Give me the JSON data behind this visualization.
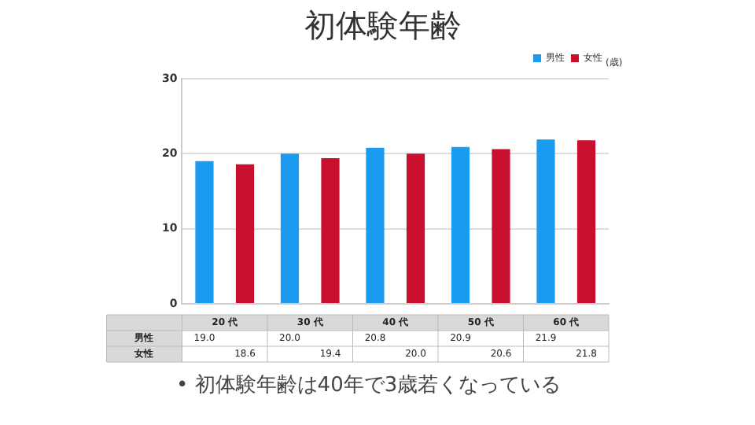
{
  "chart_data": {
    "type": "bar",
    "title": "初体験年齢",
    "ylabel": "(歳)",
    "categories": [
      "20 代",
      "30 代",
      "40 代",
      "50 代",
      "60 代"
    ],
    "series": [
      {
        "name": "男性",
        "color": "#1a9bf0",
        "values": [
          19.0,
          20.0,
          20.8,
          20.9,
          21.9
        ],
        "value_labels": [
          "19.0",
          "20.0",
          "20.8",
          "20.9",
          "21.9"
        ]
      },
      {
        "name": "女性",
        "color": "#c8102e",
        "values": [
          18.6,
          19.4,
          20.0,
          20.6,
          21.8
        ],
        "value_labels": [
          "18.6",
          "19.4",
          "20.0",
          "20.6",
          "21.8"
        ]
      }
    ],
    "ylim": [
      0,
      30
    ],
    "yticks": [
      0,
      10,
      20,
      30
    ],
    "grid": "y",
    "legend": "top right",
    "annotations": [
      "• 初体験年齢は40年で3歳若くなっている"
    ]
  }
}
